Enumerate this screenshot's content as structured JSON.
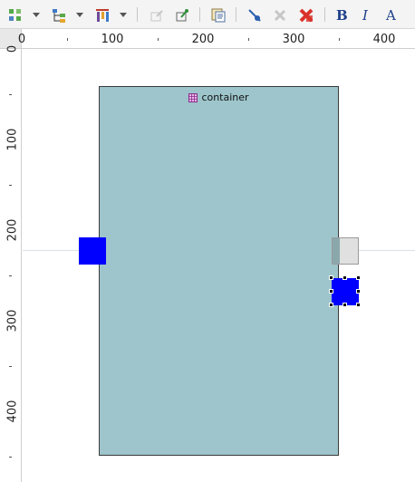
{
  "toolbar": {
    "tools": [
      {
        "name": "add-element-icon"
      },
      {
        "name": "tree-layout-icon"
      },
      {
        "name": "align-columns-icon"
      },
      {
        "name": "edit-disabled-icon"
      },
      {
        "name": "pin-edit-icon"
      },
      {
        "name": "properties-icon"
      },
      {
        "name": "pen-tool-icon"
      },
      {
        "name": "delete-disabled-icon"
      },
      {
        "name": "delete-red-icon"
      }
    ],
    "bold_label": "B",
    "italic_label": "I",
    "font_color_label": "A"
  },
  "ruler": {
    "horizontal_labels": [
      "0",
      "100",
      "200",
      "300",
      "400"
    ],
    "vertical_labels": [
      "0",
      "100",
      "200",
      "300",
      "400"
    ]
  },
  "diagram": {
    "container_label": "container",
    "container_color": "#9dc5cb",
    "port_color": "#0000ff"
  }
}
